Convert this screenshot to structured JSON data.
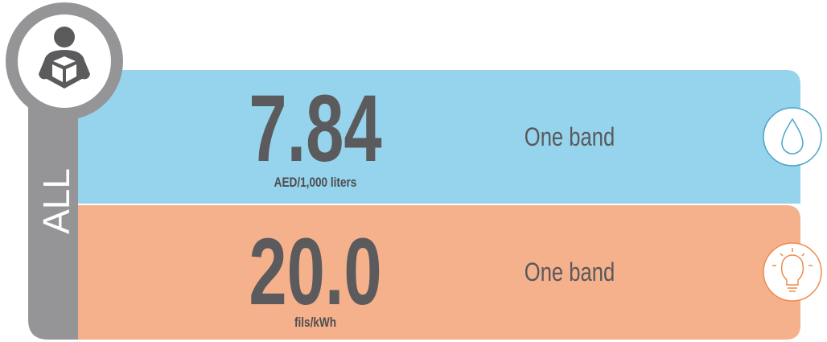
{
  "category_label": "ALL",
  "rows": [
    {
      "value": "7.84",
      "unit": "AED/1,000 liters",
      "band": "One band"
    },
    {
      "value": "20.0",
      "unit": "fils/kWh",
      "band": "One band"
    }
  ]
}
